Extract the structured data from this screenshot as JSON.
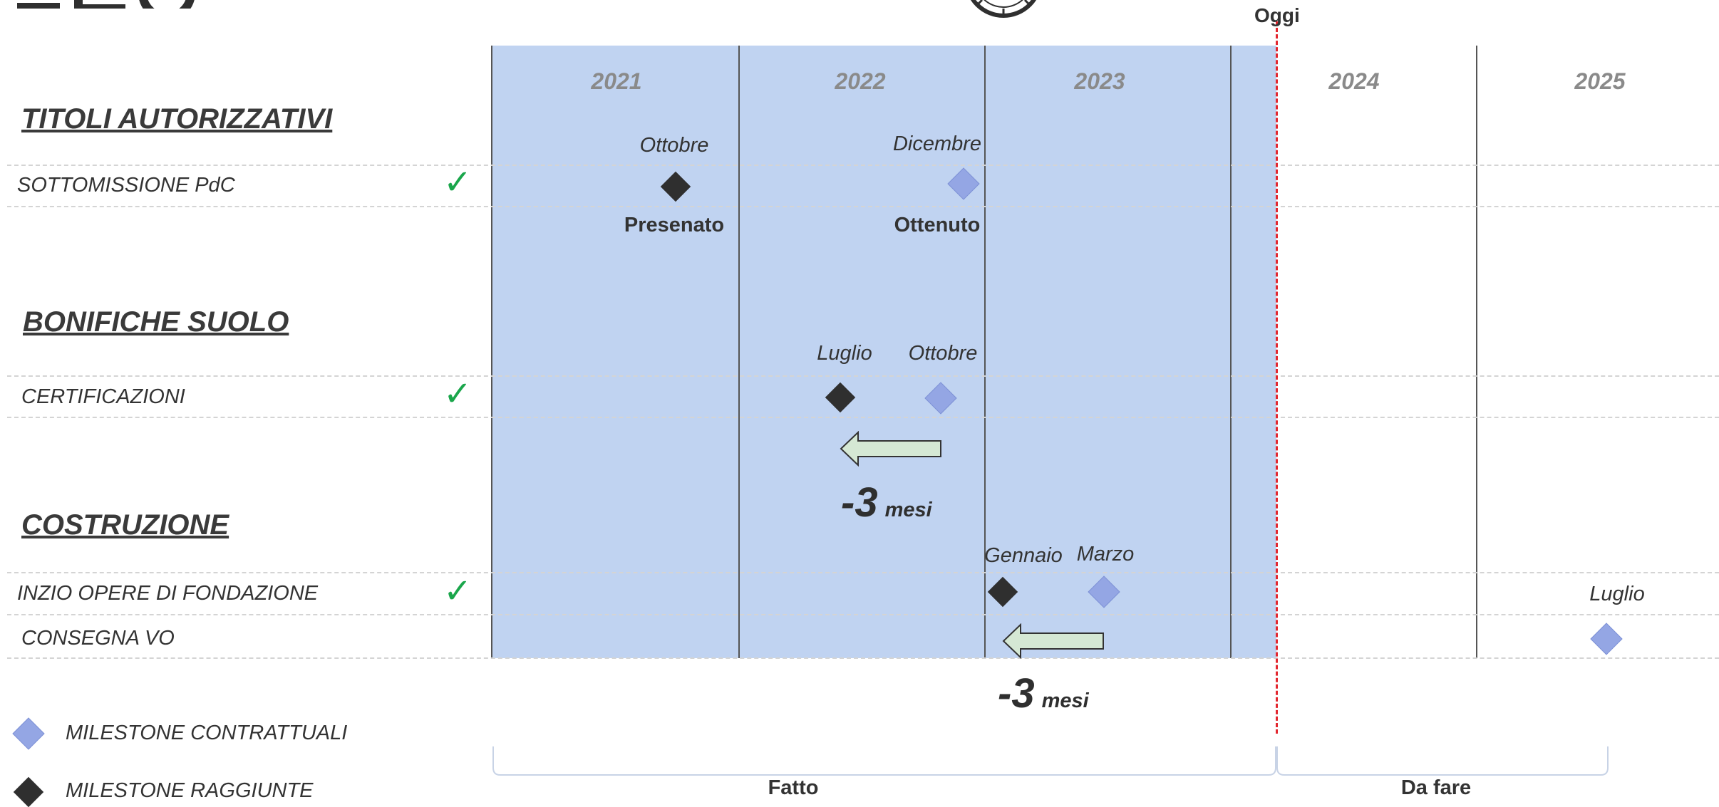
{
  "header": {
    "today_label": "Oggi"
  },
  "timeline": {
    "years": [
      "2021",
      "2022",
      "2023",
      "2024",
      "2025"
    ]
  },
  "sections": {
    "titoli": {
      "title": "TITOLI AUTORIZZATIVI",
      "rows": [
        {
          "label": "SOTTOMISSIONE PdC",
          "done": true,
          "check": "✓",
          "milestones": [
            {
              "type": "reached",
              "month": "Ottobre",
              "status": "Presenato"
            },
            {
              "type": "contractual",
              "month": "Dicembre",
              "status": "Ottenuto"
            }
          ]
        }
      ]
    },
    "bonifiche": {
      "title": "BONIFICHE SUOLO",
      "rows": [
        {
          "label": "CERTIFICAZIONI",
          "done": true,
          "check": "✓",
          "milestones": [
            {
              "type": "reached",
              "month": "Luglio"
            },
            {
              "type": "contractual",
              "month": "Ottobre"
            }
          ],
          "delay": {
            "value": "-3",
            "unit": "mesi"
          }
        }
      ]
    },
    "costruzione": {
      "title": "COSTRUZIONE",
      "rows": [
        {
          "label": "INZIO OPERE DI FONDAZIONE",
          "done": true,
          "check": "✓",
          "milestones": [
            {
              "type": "reached",
              "month": "Gennaio"
            },
            {
              "type": "contractual",
              "month": "Marzo"
            },
            {
              "type": "contractual",
              "month": "Luglio"
            }
          ],
          "delay": {
            "value": "-3",
            "unit": "mesi"
          }
        },
        {
          "label": "CONSEGNA VO",
          "done": false
        }
      ]
    }
  },
  "legend": [
    {
      "icon": "blue-diamond-icon",
      "label": "MILESTONE CONTRATTUALI",
      "color": "#94a6e4"
    },
    {
      "icon": "black-diamond-icon",
      "label": "MILESTONE RAGGIUNTE",
      "color": "#2f2f2f"
    }
  ],
  "phases": {
    "done": "Fatto",
    "todo": "Da fare"
  },
  "colors": {
    "done_band": "#c0d3f1",
    "today_line": "#e3272f",
    "check": "#1aa64b",
    "arrow_fill": "#d5e8d4"
  }
}
